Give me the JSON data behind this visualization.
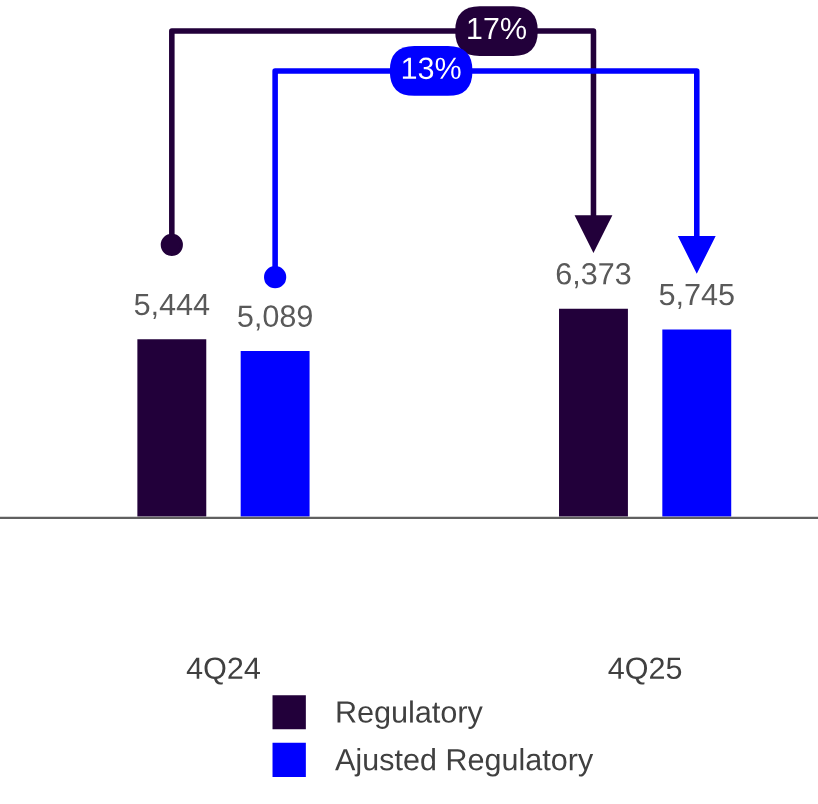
{
  "chart_data": {
    "type": "bar",
    "categories": [
      "4Q24",
      "4Q25"
    ],
    "series": [
      {
        "name": "Regulatory",
        "color": "#22003a",
        "values": [
          5444,
          6373
        ],
        "value_labels": [
          "5,444",
          "6,373"
        ]
      },
      {
        "name": "Ajusted Regulatory",
        "color": "#0000ff",
        "values": [
          5089,
          5745
        ],
        "value_labels": [
          "5,089",
          "5,745"
        ]
      }
    ],
    "grid": false,
    "legend": "bottom",
    "tick_labels": "x",
    "annotations": [
      "17%",
      "13%"
    ]
  }
}
